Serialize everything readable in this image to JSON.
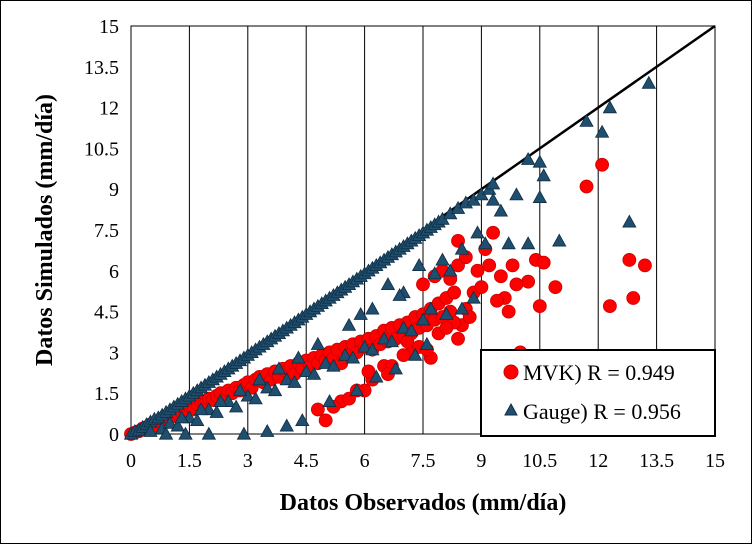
{
  "chart_data": {
    "type": "scatter",
    "xlabel": "Datos Observados (mm/día)",
    "ylabel": "Datos Simulados (mm/día)",
    "xlim": [
      0,
      15
    ],
    "ylim": [
      0,
      15
    ],
    "x_ticks": [
      "0",
      "1.5",
      "3",
      "4.5",
      "6",
      "7.5",
      "9",
      "10.5",
      "12",
      "13.5",
      "15"
    ],
    "y_ticks": [
      "0",
      "1.5",
      "3",
      "4.5",
      "6",
      "7.5",
      "9",
      "10.5",
      "12",
      "13.5",
      "15"
    ],
    "grid": "vertical",
    "reference_line": {
      "type": "1:1",
      "from": [
        0,
        0
      ],
      "to": [
        15,
        15
      ],
      "color": "#000000"
    },
    "legend_position": "bottom-right",
    "series": [
      {
        "name": "MVK) R = 0.949",
        "marker": "circle",
        "color": "#ff0000",
        "points": [
          [
            0.0,
            0.0
          ],
          [
            0.1,
            0.05
          ],
          [
            0.2,
            0.1
          ],
          [
            0.3,
            0.2
          ],
          [
            0.4,
            0.25
          ],
          [
            0.5,
            0.35
          ],
          [
            0.6,
            0.3
          ],
          [
            0.7,
            0.45
          ],
          [
            0.8,
            0.5
          ],
          [
            0.9,
            0.55
          ],
          [
            1.0,
            0.6
          ],
          [
            1.1,
            0.7
          ],
          [
            1.2,
            0.75
          ],
          [
            1.3,
            0.8
          ],
          [
            1.4,
            0.9
          ],
          [
            1.5,
            1.0
          ],
          [
            1.6,
            0.9
          ],
          [
            1.7,
            1.1
          ],
          [
            1.8,
            1.2
          ],
          [
            1.9,
            1.1
          ],
          [
            2.0,
            1.3
          ],
          [
            2.1,
            1.25
          ],
          [
            2.2,
            1.4
          ],
          [
            2.3,
            1.5
          ],
          [
            2.4,
            1.3
          ],
          [
            2.5,
            1.6
          ],
          [
            2.6,
            1.5
          ],
          [
            2.7,
            1.7
          ],
          [
            2.8,
            1.6
          ],
          [
            2.9,
            1.8
          ],
          [
            3.0,
            1.9
          ],
          [
            3.1,
            1.7
          ],
          [
            3.2,
            2.0
          ],
          [
            3.3,
            2.1
          ],
          [
            3.4,
            1.9
          ],
          [
            3.5,
            2.2
          ],
          [
            3.6,
            2.0
          ],
          [
            3.7,
            2.3
          ],
          [
            3.8,
            2.1
          ],
          [
            3.9,
            2.4
          ],
          [
            4.0,
            2.3
          ],
          [
            4.1,
            2.5
          ],
          [
            4.2,
            2.2
          ],
          [
            4.3,
            2.6
          ],
          [
            4.4,
            2.4
          ],
          [
            4.5,
            2.7
          ],
          [
            4.6,
            2.5
          ],
          [
            4.7,
            2.8
          ],
          [
            4.8,
            2.6
          ],
          [
            4.9,
            2.9
          ],
          [
            5.0,
            2.7
          ],
          [
            5.1,
            3.0
          ],
          [
            5.2,
            2.8
          ],
          [
            5.3,
            3.1
          ],
          [
            5.4,
            2.6
          ],
          [
            5.5,
            3.2
          ],
          [
            5.6,
            2.9
          ],
          [
            5.7,
            3.3
          ],
          [
            5.8,
            3.0
          ],
          [
            5.9,
            3.4
          ],
          [
            6.0,
            3.2
          ],
          [
            6.1,
            3.5
          ],
          [
            6.2,
            3.1
          ],
          [
            6.3,
            3.6
          ],
          [
            6.4,
            3.3
          ],
          [
            6.5,
            3.8
          ],
          [
            6.6,
            3.4
          ],
          [
            6.7,
            3.9
          ],
          [
            6.8,
            3.5
          ],
          [
            6.9,
            4.0
          ],
          [
            7.0,
            3.6
          ],
          [
            7.1,
            4.1
          ],
          [
            7.2,
            3.7
          ],
          [
            7.3,
            4.3
          ],
          [
            7.4,
            3.9
          ],
          [
            7.5,
            4.4
          ],
          [
            7.6,
            4.0
          ],
          [
            7.7,
            4.6
          ],
          [
            7.8,
            4.2
          ],
          [
            7.9,
            4.8
          ],
          [
            8.0,
            4.3
          ],
          [
            8.1,
            5.0
          ],
          [
            8.2,
            4.5
          ],
          [
            8.3,
            5.2
          ],
          [
            8.4,
            3.5
          ],
          [
            8.5,
            4.0
          ],
          [
            7.7,
            2.8
          ],
          [
            7.2,
            3.0
          ],
          [
            6.0,
            1.6
          ],
          [
            6.5,
            2.5
          ],
          [
            4.8,
            0.9
          ],
          [
            5.0,
            0.5
          ],
          [
            5.4,
            1.2
          ],
          [
            5.8,
            1.6
          ],
          [
            6.2,
            2.0
          ],
          [
            6.7,
            2.5
          ],
          [
            7.0,
            2.9
          ],
          [
            7.4,
            3.2
          ],
          [
            7.9,
            3.7
          ],
          [
            8.3,
            4.1
          ],
          [
            5.2,
            1.0
          ],
          [
            5.6,
            1.3
          ],
          [
            6.1,
            2.3
          ],
          [
            6.6,
            2.2
          ],
          [
            7.1,
            3.4
          ],
          [
            7.6,
            3.1
          ],
          [
            8.1,
            3.9
          ],
          [
            8.6,
            4.6
          ],
          [
            8.8,
            5.2
          ],
          [
            9.0,
            5.4
          ],
          [
            7.5,
            5.5
          ],
          [
            7.8,
            5.8
          ],
          [
            8.0,
            6.0
          ],
          [
            8.2,
            5.7
          ],
          [
            8.4,
            6.2
          ],
          [
            8.6,
            6.5
          ],
          [
            8.9,
            6.0
          ],
          [
            9.1,
            6.8
          ],
          [
            9.3,
            7.4
          ],
          [
            9.5,
            5.8
          ],
          [
            9.6,
            5.0
          ],
          [
            9.7,
            4.5
          ],
          [
            9.8,
            6.2
          ],
          [
            10.0,
            3.0
          ],
          [
            10.2,
            5.6
          ],
          [
            10.4,
            6.4
          ],
          [
            10.5,
            4.7
          ],
          [
            10.6,
            6.3
          ],
          [
            10.9,
            5.4
          ],
          [
            11.7,
            9.1
          ],
          [
            12.1,
            9.9
          ],
          [
            12.3,
            4.7
          ],
          [
            12.8,
            6.4
          ],
          [
            12.9,
            5.0
          ],
          [
            13.2,
            6.2
          ],
          [
            8.4,
            7.1
          ],
          [
            9.2,
            6.2
          ],
          [
            9.9,
            5.5
          ],
          [
            8.7,
            4.3
          ],
          [
            9.4,
            4.9
          ]
        ]
      },
      {
        "name": "Gauge) R = 0.956",
        "marker": "triangle",
        "color": "#1f4e6e",
        "points": [
          [
            0.0,
            0.0
          ],
          [
            0.1,
            0.1
          ],
          [
            0.2,
            0.15
          ],
          [
            0.3,
            0.25
          ],
          [
            0.4,
            0.35
          ],
          [
            0.5,
            0.45
          ],
          [
            0.6,
            0.55
          ],
          [
            0.7,
            0.6
          ],
          [
            0.8,
            0.7
          ],
          [
            0.9,
            0.8
          ],
          [
            1.0,
            0.9
          ],
          [
            1.1,
            1.0
          ],
          [
            1.2,
            1.1
          ],
          [
            1.3,
            1.2
          ],
          [
            1.4,
            1.3
          ],
          [
            1.5,
            1.4
          ],
          [
            1.6,
            1.5
          ],
          [
            1.7,
            1.6
          ],
          [
            1.8,
            1.7
          ],
          [
            1.9,
            1.8
          ],
          [
            2.0,
            1.9
          ],
          [
            2.1,
            2.0
          ],
          [
            2.2,
            2.1
          ],
          [
            2.3,
            2.2
          ],
          [
            2.4,
            2.3
          ],
          [
            2.5,
            2.4
          ],
          [
            2.6,
            2.5
          ],
          [
            2.7,
            2.6
          ],
          [
            2.8,
            2.7
          ],
          [
            2.9,
            2.8
          ],
          [
            3.0,
            2.9
          ],
          [
            3.1,
            3.0
          ],
          [
            3.2,
            3.1
          ],
          [
            3.3,
            3.2
          ],
          [
            3.4,
            3.3
          ],
          [
            3.5,
            3.4
          ],
          [
            3.6,
            3.5
          ],
          [
            3.7,
            3.6
          ],
          [
            3.8,
            3.7
          ],
          [
            3.9,
            3.8
          ],
          [
            4.0,
            3.9
          ],
          [
            4.1,
            4.0
          ],
          [
            4.2,
            4.1
          ],
          [
            4.3,
            4.2
          ],
          [
            4.4,
            4.3
          ],
          [
            4.5,
            4.4
          ],
          [
            4.6,
            4.5
          ],
          [
            4.7,
            4.6
          ],
          [
            4.8,
            4.7
          ],
          [
            4.9,
            4.8
          ],
          [
            5.0,
            4.9
          ],
          [
            5.1,
            5.0
          ],
          [
            5.2,
            5.1
          ],
          [
            5.3,
            5.2
          ],
          [
            5.4,
            5.3
          ],
          [
            5.5,
            5.4
          ],
          [
            5.6,
            5.5
          ],
          [
            5.7,
            5.6
          ],
          [
            5.8,
            5.7
          ],
          [
            5.9,
            5.8
          ],
          [
            6.0,
            5.9
          ],
          [
            6.1,
            6.0
          ],
          [
            6.2,
            6.1
          ],
          [
            6.3,
            6.2
          ],
          [
            6.4,
            6.3
          ],
          [
            6.5,
            6.4
          ],
          [
            6.6,
            6.5
          ],
          [
            6.7,
            6.6
          ],
          [
            6.8,
            6.7
          ],
          [
            6.9,
            6.8
          ],
          [
            7.0,
            6.9
          ],
          [
            7.1,
            7.0
          ],
          [
            7.2,
            7.1
          ],
          [
            7.3,
            7.2
          ],
          [
            7.4,
            7.3
          ],
          [
            7.5,
            7.4
          ],
          [
            7.6,
            7.5
          ],
          [
            7.7,
            7.6
          ],
          [
            7.8,
            7.7
          ],
          [
            7.9,
            7.8
          ],
          [
            8.0,
            7.9
          ],
          [
            8.2,
            8.1
          ],
          [
            8.4,
            8.3
          ],
          [
            8.6,
            8.5
          ],
          [
            8.8,
            8.6
          ],
          [
            9.0,
            8.8
          ],
          [
            9.2,
            9.0
          ],
          [
            9.3,
            9.2
          ],
          [
            10.2,
            10.1
          ],
          [
            10.5,
            10.0
          ],
          [
            0.5,
            0.1
          ],
          [
            0.8,
            0.2
          ],
          [
            1.0,
            0.4
          ],
          [
            1.2,
            0.3
          ],
          [
            1.5,
            0.6
          ],
          [
            1.7,
            0.5
          ],
          [
            2.0,
            0.9
          ],
          [
            2.2,
            0.8
          ],
          [
            2.5,
            1.2
          ],
          [
            2.7,
            1.0
          ],
          [
            3.0,
            1.4
          ],
          [
            3.2,
            1.3
          ],
          [
            3.5,
            1.7
          ],
          [
            3.7,
            1.6
          ],
          [
            4.0,
            2.0
          ],
          [
            4.2,
            1.9
          ],
          [
            4.5,
            2.3
          ],
          [
            4.7,
            2.2
          ],
          [
            5.0,
            2.6
          ],
          [
            5.2,
            2.5
          ],
          [
            5.5,
            2.9
          ],
          [
            5.7,
            2.8
          ],
          [
            6.0,
            3.2
          ],
          [
            6.2,
            3.1
          ],
          [
            6.5,
            3.5
          ],
          [
            6.7,
            3.4
          ],
          [
            7.0,
            3.9
          ],
          [
            7.2,
            3.8
          ],
          [
            7.5,
            4.2
          ],
          [
            7.7,
            4.6
          ],
          [
            0.9,
            0.0
          ],
          [
            1.4,
            0.0
          ],
          [
            2.0,
            0.0
          ],
          [
            2.9,
            0.0
          ],
          [
            3.5,
            0.1
          ],
          [
            4.0,
            0.3
          ],
          [
            4.4,
            0.5
          ],
          [
            5.1,
            1.2
          ],
          [
            5.8,
            1.6
          ],
          [
            6.3,
            2.1
          ],
          [
            6.8,
            2.4
          ],
          [
            7.3,
            2.9
          ],
          [
            7.6,
            3.3
          ],
          [
            8.1,
            4.4
          ],
          [
            8.5,
            4.6
          ],
          [
            8.8,
            5.0
          ],
          [
            8.2,
            6.0
          ],
          [
            8.5,
            6.8
          ],
          [
            8.9,
            7.4
          ],
          [
            9.1,
            7.0
          ],
          [
            9.3,
            8.6
          ],
          [
            9.5,
            8.2
          ],
          [
            9.7,
            7.0
          ],
          [
            9.9,
            8.8
          ],
          [
            10.2,
            7.0
          ],
          [
            10.5,
            8.7
          ],
          [
            10.6,
            9.5
          ],
          [
            11.0,
            7.1
          ],
          [
            11.7,
            11.5
          ],
          [
            12.1,
            11.1
          ],
          [
            12.3,
            12.0
          ],
          [
            12.8,
            7.8
          ],
          [
            13.3,
            12.9
          ],
          [
            6.6,
            5.5
          ],
          [
            7.0,
            5.2
          ],
          [
            7.4,
            6.2
          ],
          [
            7.8,
            5.9
          ],
          [
            8.0,
            6.4
          ],
          [
            6.2,
            4.6
          ],
          [
            5.6,
            4.0
          ],
          [
            4.8,
            3.3
          ],
          [
            4.3,
            2.8
          ],
          [
            3.8,
            2.4
          ],
          [
            3.3,
            2.0
          ],
          [
            2.8,
            1.6
          ],
          [
            2.3,
            1.2
          ],
          [
            1.8,
            0.9
          ],
          [
            1.3,
            0.6
          ],
          [
            5.9,
            4.4
          ],
          [
            6.9,
            5.1
          ]
        ]
      }
    ]
  }
}
